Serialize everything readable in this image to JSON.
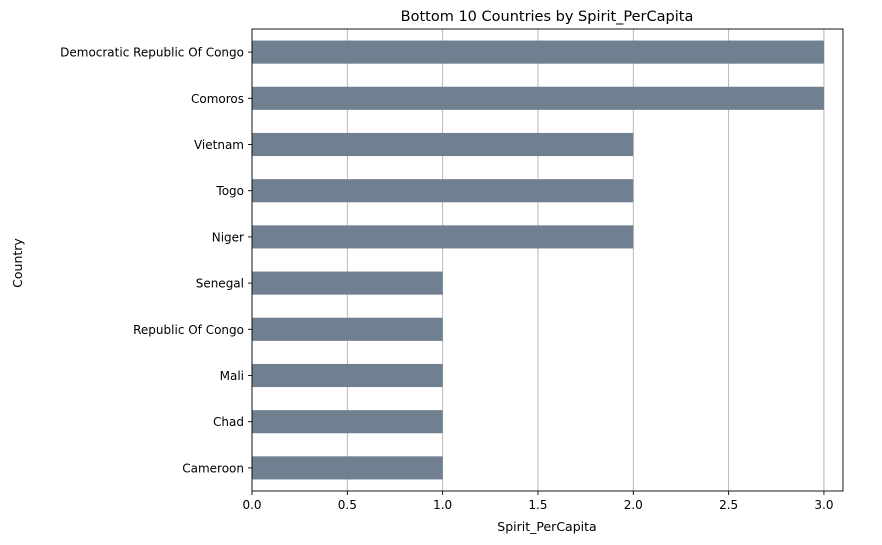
{
  "chart_data": {
    "type": "bar",
    "orientation": "horizontal",
    "title": "Bottom 10 Countries by Spirit_PerCapita",
    "xlabel": "Spirit_PerCapita",
    "ylabel": "Country",
    "categories": [
      "Democratic Republic Of Congo",
      "Comoros",
      "Vietnam",
      "Togo",
      "Niger",
      "Senegal",
      "Republic Of Congo",
      "Mali",
      "Chad",
      "Cameroon"
    ],
    "values": [
      3,
      3,
      2,
      2,
      2,
      1,
      1,
      1,
      1,
      1
    ],
    "xlim": [
      0,
      3.1
    ],
    "xticks": [
      0.0,
      0.5,
      1.0,
      1.5,
      2.0,
      2.5,
      3.0
    ],
    "xtick_labels": [
      "0.0",
      "0.5",
      "1.0",
      "1.5",
      "2.0",
      "2.5",
      "3.0"
    ],
    "grid": "x-axis vertical gridlines",
    "legend": "none",
    "bar_color": "#708090",
    "grid_color": "#b0b0b0"
  }
}
